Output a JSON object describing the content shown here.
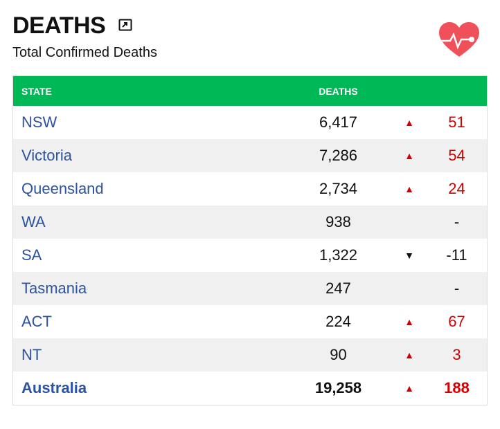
{
  "header": {
    "title": "DEATHS",
    "subtitle": "Total Confirmed Deaths"
  },
  "table": {
    "columns": [
      "STATE",
      "DEATHS"
    ],
    "rows": [
      {
        "state": "NSW",
        "deaths": "6,417",
        "trend": "up",
        "change": "51"
      },
      {
        "state": "Victoria",
        "deaths": "7,286",
        "trend": "up",
        "change": "54"
      },
      {
        "state": "Queensland",
        "deaths": "2,734",
        "trend": "up",
        "change": "24"
      },
      {
        "state": "WA",
        "deaths": "938",
        "trend": null,
        "change": "-"
      },
      {
        "state": "SA",
        "deaths": "1,322",
        "trend": "down",
        "change": "-11"
      },
      {
        "state": "Tasmania",
        "deaths": "247",
        "trend": null,
        "change": "-"
      },
      {
        "state": "ACT",
        "deaths": "224",
        "trend": "up",
        "change": "67"
      },
      {
        "state": "NT",
        "deaths": "90",
        "trend": "up",
        "change": "3"
      }
    ],
    "total": {
      "state": "Australia",
      "deaths": "19,258",
      "trend": "up",
      "change": "188"
    }
  }
}
